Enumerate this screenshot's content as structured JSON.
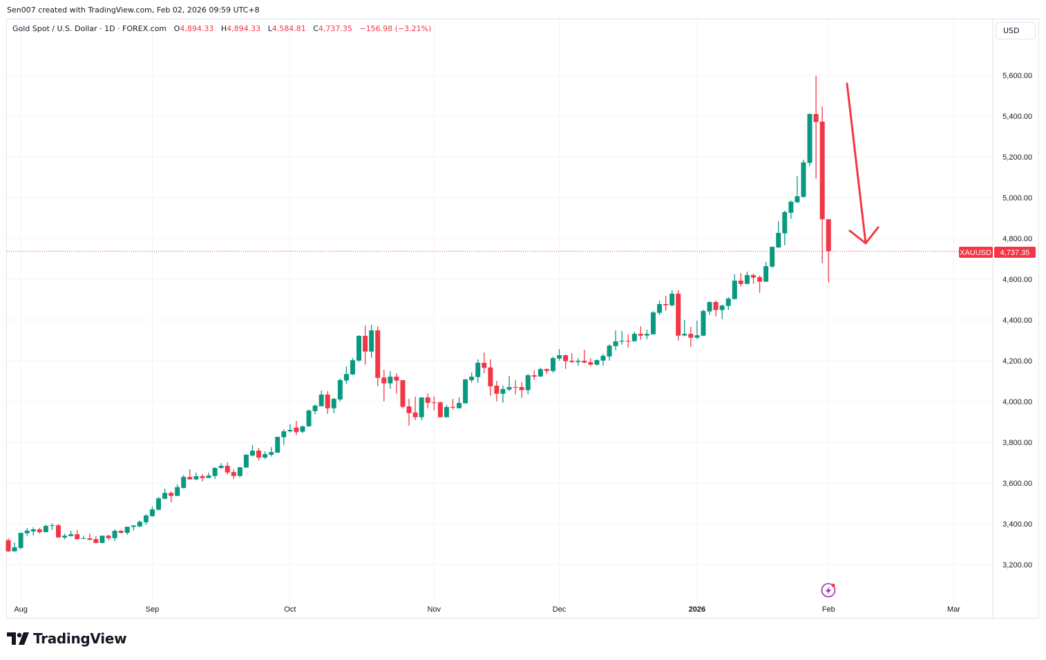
{
  "credit": "Sen007 created with TradingView.com, Feb 02, 2026 09:59 UTC+8",
  "legend": {
    "symbol": "Gold Spot / U.S. Dollar · 1D · FOREX.com",
    "o_label": "O",
    "o": "4,894.33",
    "h_label": "H",
    "h": "4,894.33",
    "l_label": "L",
    "l": "4,584.81",
    "c_label": "C",
    "c": "4,737.35",
    "change": "−156.98 (−3.21%)"
  },
  "currency_button": "USD",
  "price_tag": {
    "symbol": "XAUUSD",
    "price": "4,737.35"
  },
  "brand": "TradingView",
  "colors": {
    "up": "#089981",
    "down": "#f23645",
    "grid": "#f0f3fa",
    "annotation": "#f23645",
    "event": "#9c27b0"
  },
  "chart_data": {
    "type": "candlestick",
    "title": "Gold Spot / U.S. Dollar · 1D · FOREX.com",
    "ylim": [
      3100,
      5800
    ],
    "yticks": [
      3200,
      3400,
      3600,
      3800,
      4000,
      4200,
      4400,
      4600,
      4800,
      5000,
      5200,
      5400,
      5600
    ],
    "ytick_labels": [
      "3,200.00",
      "3,400.00",
      "3,600.00",
      "3,800.00",
      "4,000.00",
      "4,200.00",
      "4,400.00",
      "4,600.00",
      "4,800.00",
      "5,000.00",
      "5,200.00",
      "5,400.00",
      "5,600.00"
    ],
    "xticks": [
      {
        "label": "Aug",
        "index": 2
      },
      {
        "label": "Sep",
        "index": 23
      },
      {
        "label": "Oct",
        "index": 45
      },
      {
        "label": "Nov",
        "index": 68
      },
      {
        "label": "Dec",
        "index": 88
      },
      {
        "label": "2026",
        "index": 110,
        "bold": true
      },
      {
        "label": "Feb",
        "index": 131
      },
      {
        "label": "Mar",
        "index": 151
      }
    ],
    "last_price": 4737.35,
    "annotation": "down-arrow",
    "candles_ohlc": [
      [
        3320,
        3329,
        3262,
        3265
      ],
      [
        3265,
        3308,
        3265,
        3285
      ],
      [
        3282,
        3356,
        3275,
        3356
      ],
      [
        3354,
        3380,
        3340,
        3367
      ],
      [
        3363,
        3383,
        3343,
        3373
      ],
      [
        3373,
        3380,
        3352,
        3359
      ],
      [
        3359,
        3396,
        3359,
        3390
      ],
      [
        3390,
        3403,
        3370,
        3393
      ],
      [
        3393,
        3400,
        3333,
        3333
      ],
      [
        3333,
        3352,
        3325,
        3342
      ],
      [
        3340,
        3366,
        3338,
        3349
      ],
      [
        3349,
        3369,
        3322,
        3325
      ],
      [
        3327,
        3342,
        3327,
        3329
      ],
      [
        3329,
        3352,
        3318,
        3322
      ],
      [
        3325,
        3339,
        3306,
        3306
      ],
      [
        3306,
        3342,
        3306,
        3342
      ],
      [
        3342,
        3346,
        3320,
        3330
      ],
      [
        3330,
        3373,
        3316,
        3366
      ],
      [
        3366,
        3369,
        3352,
        3356
      ],
      [
        3356,
        3386,
        3346,
        3386
      ],
      [
        3385,
        3393,
        3367,
        3392
      ],
      [
        3387,
        3417,
        3384,
        3410
      ],
      [
        3408,
        3447,
        3396,
        3441
      ],
      [
        3438,
        3485,
        3434,
        3471
      ],
      [
        3469,
        3532,
        3466,
        3525
      ],
      [
        3523,
        3573,
        3520,
        3552
      ],
      [
        3552,
        3559,
        3505,
        3537
      ],
      [
        3537,
        3593,
        3537,
        3580
      ],
      [
        3576,
        3640,
        3574,
        3630
      ],
      [
        3630,
        3668,
        3618,
        3618
      ],
      [
        3618,
        3651,
        3614,
        3634
      ],
      [
        3634,
        3644,
        3608,
        3625
      ],
      [
        3625,
        3651,
        3625,
        3637
      ],
      [
        3635,
        3678,
        3620,
        3674
      ],
      [
        3674,
        3698,
        3669,
        3685
      ],
      [
        3685,
        3702,
        3642,
        3652
      ],
      [
        3654,
        3668,
        3620,
        3635
      ],
      [
        3635,
        3678,
        3628,
        3678
      ],
      [
        3676,
        3742,
        3676,
        3739
      ],
      [
        3735,
        3786,
        3731,
        3759
      ],
      [
        3759,
        3773,
        3712,
        3725
      ],
      [
        3725,
        3756,
        3718,
        3742
      ],
      [
        3739,
        3776,
        3730,
        3752
      ],
      [
        3749,
        3827,
        3749,
        3827
      ],
      [
        3825,
        3864,
        3787,
        3854
      ],
      [
        3854,
        3888,
        3848,
        3861
      ],
      [
        3872,
        3905,
        3835,
        3850
      ],
      [
        3852,
        3882,
        3845,
        3878
      ],
      [
        3879,
        3961,
        3875,
        3956
      ],
      [
        3953,
        3986,
        3937,
        3980
      ],
      [
        3977,
        4054,
        3977,
        4034
      ],
      [
        4034,
        4051,
        3940,
        3967
      ],
      [
        3967,
        4017,
        3943,
        4013
      ],
      [
        4010,
        4112,
        4001,
        4105
      ],
      [
        4103,
        4173,
        4086,
        4135
      ],
      [
        4133,
        4213,
        4130,
        4203
      ],
      [
        4201,
        4325,
        4194,
        4322
      ],
      [
        4322,
        4373,
        4181,
        4245
      ],
      [
        4245,
        4376,
        4215,
        4349
      ],
      [
        4349,
        4369,
        4075,
        4116
      ],
      [
        4118,
        4156,
        4001,
        4089
      ],
      [
        4089,
        4149,
        4062,
        4122
      ],
      [
        4122,
        4139,
        4038,
        4103
      ],
      [
        4105,
        4105,
        3967,
        3974
      ],
      [
        3976,
        4013,
        3882,
        3943
      ],
      [
        3946,
        4024,
        3909,
        3923
      ],
      [
        3923,
        4020,
        3909,
        4020
      ],
      [
        4020,
        4040,
        3967,
        3994
      ],
      [
        3996,
        4024,
        3957,
        3994
      ],
      [
        3996,
        3999,
        3923,
        3923
      ],
      [
        3923,
        3983,
        3923,
        3973
      ],
      [
        3974,
        4013,
        3960,
        3970
      ],
      [
        3967,
        4020,
        3967,
        3993
      ],
      [
        3991,
        4112,
        3991,
        4108
      ],
      [
        4105,
        4142,
        4092,
        4122
      ],
      [
        4120,
        4207,
        4092,
        4190
      ],
      [
        4190,
        4240,
        4139,
        4165
      ],
      [
        4167,
        4207,
        4028,
        4075
      ],
      [
        4078,
        4101,
        4001,
        4038
      ],
      [
        4038,
        4078,
        3994,
        4061
      ],
      [
        4059,
        4125,
        4051,
        4071
      ],
      [
        4071,
        4105,
        4035,
        4070
      ],
      [
        4071,
        4095,
        4018,
        4056
      ],
      [
        4056,
        4135,
        4035,
        4129
      ],
      [
        4129,
        4152,
        4107,
        4122
      ],
      [
        4123,
        4166,
        4120,
        4159
      ],
      [
        4159,
        4163,
        4137,
        4150
      ],
      [
        4150,
        4220,
        4141,
        4213
      ],
      [
        4211,
        4257,
        4200,
        4227
      ],
      [
        4227,
        4230,
        4160,
        4198
      ],
      [
        4200,
        4237,
        4190,
        4194
      ],
      [
        4194,
        4213,
        4175,
        4200
      ],
      [
        4200,
        4254,
        4188,
        4191
      ],
      [
        4193,
        4213,
        4175,
        4181
      ],
      [
        4181,
        4207,
        4176,
        4203
      ],
      [
        4201,
        4234,
        4176,
        4224
      ],
      [
        4221,
        4281,
        4201,
        4274
      ],
      [
        4272,
        4349,
        4252,
        4295
      ],
      [
        4294,
        4346,
        4279,
        4298
      ],
      [
        4298,
        4329,
        4265,
        4296
      ],
      [
        4296,
        4342,
        4293,
        4332
      ],
      [
        4332,
        4369,
        4303,
        4323
      ],
      [
        4324,
        4352,
        4306,
        4332
      ],
      [
        4330,
        4444,
        4328,
        4437
      ],
      [
        4435,
        4495,
        4425,
        4478
      ],
      [
        4478,
        4519,
        4445,
        4472
      ],
      [
        4472,
        4546,
        4466,
        4529
      ],
      [
        4529,
        4546,
        4299,
        4323
      ],
      [
        4324,
        4400,
        4320,
        4332
      ],
      [
        4332,
        4366,
        4269,
        4313
      ],
      [
        4313,
        4397,
        4307,
        4325
      ],
      [
        4323,
        4451,
        4321,
        4444
      ],
      [
        4442,
        4491,
        4425,
        4488
      ],
      [
        4488,
        4495,
        4418,
        4449
      ],
      [
        4449,
        4475,
        4404,
        4471
      ],
      [
        4469,
        4512,
        4449,
        4505
      ],
      [
        4503,
        4624,
        4500,
        4593
      ],
      [
        4593,
        4630,
        4564,
        4577
      ],
      [
        4577,
        4637,
        4575,
        4620
      ],
      [
        4620,
        4628,
        4577,
        4608
      ],
      [
        4610,
        4617,
        4533,
        4588
      ],
      [
        4588,
        4685,
        4586,
        4664
      ],
      [
        4662,
        4759,
        4655,
        4759
      ],
      [
        4756,
        4885,
        4753,
        4827
      ],
      [
        4825,
        4936,
        4767,
        4929
      ],
      [
        4926,
        4986,
        4896,
        4980
      ],
      [
        4977,
        5105,
        4975,
        5007
      ],
      [
        5004,
        5186,
        5000,
        5173
      ],
      [
        5171,
        5414,
        5154,
        5410
      ],
      [
        5410,
        5598,
        5093,
        5371
      ],
      [
        5373,
        5447,
        4679,
        4894
      ],
      [
        4894.33,
        4894.33,
        4584.81,
        4737.35
      ]
    ]
  }
}
